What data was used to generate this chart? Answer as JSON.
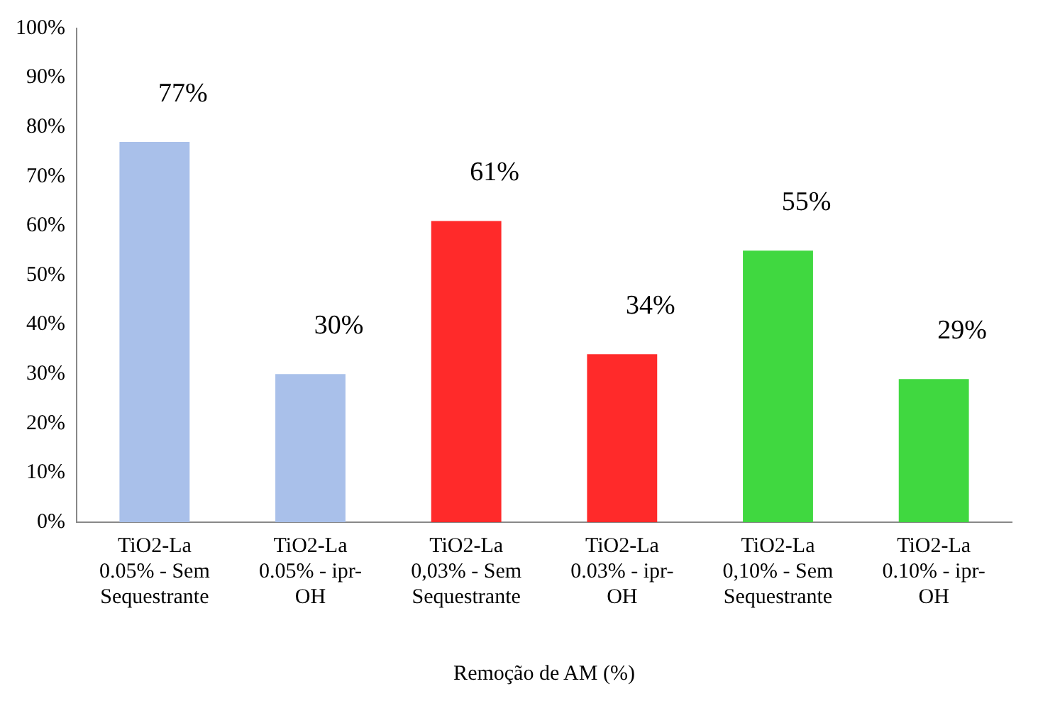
{
  "chart_data": {
    "type": "bar",
    "xlabel": "Remoção de AM (%)",
    "categories": [
      "TiO2-La 0.05% - Sem Sequestrante",
      "TiO2-La 0.05% - ipr-OH",
      "TiO2-La 0,03% - Sem Sequestrante",
      "TiO2-La 0.03% - ipr-OH",
      "TiO2-La 0,10% - Sem Sequestrante",
      "TiO2-La 0.10% - ipr-OH"
    ],
    "values": [
      77,
      30,
      61,
      34,
      55,
      29
    ],
    "colors": [
      "#a9c0ea",
      "#a9c0ea",
      "#ff2a2a",
      "#ff2a2a",
      "#40d840",
      "#40d840"
    ],
    "ylim": [
      0,
      100
    ],
    "yticks": [
      {
        "value": 0,
        "label": "0%"
      },
      {
        "value": 10,
        "label": "10%"
      },
      {
        "value": 20,
        "label": "20%"
      },
      {
        "value": 30,
        "label": "30%"
      },
      {
        "value": 40,
        "label": "40%"
      },
      {
        "value": 50,
        "label": "50%"
      },
      {
        "value": 60,
        "label": "60%"
      },
      {
        "value": 70,
        "label": "70%"
      },
      {
        "value": 80,
        "label": "80%"
      },
      {
        "value": 90,
        "label": "90%"
      },
      {
        "value": 100,
        "label": "100%"
      }
    ],
    "value_labels": [
      "77%",
      "30%",
      "61%",
      "34%",
      "55%",
      "29%"
    ],
    "grid": false,
    "legend": false
  }
}
